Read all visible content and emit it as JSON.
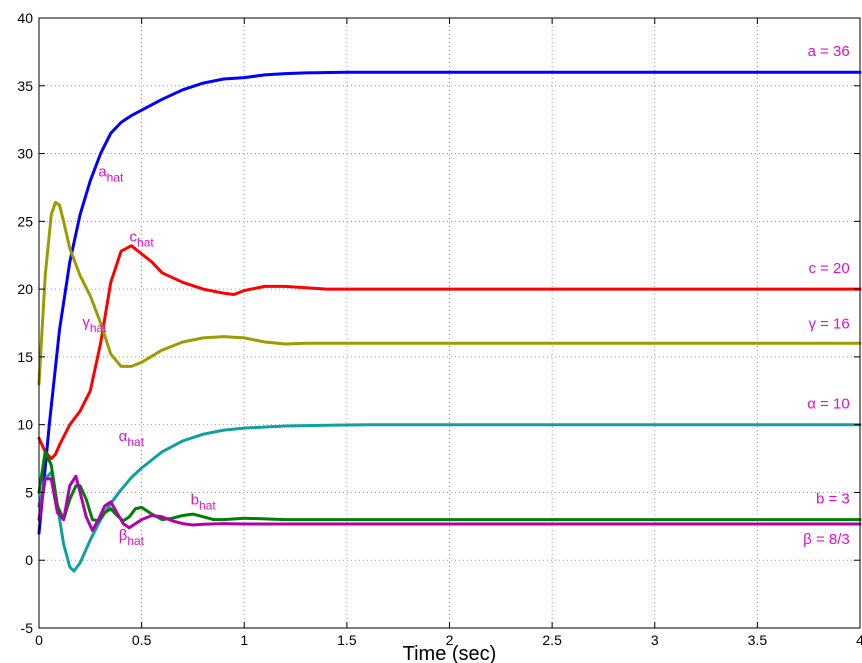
{
  "chart_data": {
    "type": "line",
    "title": "",
    "xlabel": "Time (sec)",
    "ylabel": "",
    "xlim": [
      0,
      4
    ],
    "ylim": [
      -5,
      40
    ],
    "xticks": [
      0,
      0.5,
      1,
      1.5,
      2,
      2.5,
      3,
      3.5,
      4
    ],
    "xtick_labels": [
      "0",
      "0.5",
      "1",
      "1.5",
      "2",
      "2.5",
      "3",
      "3.5",
      "4"
    ],
    "yticks": [
      -5,
      0,
      5,
      10,
      15,
      20,
      25,
      30,
      35,
      40
    ],
    "ytick_labels": [
      "-5",
      "0",
      "5",
      "10",
      "15",
      "20",
      "25",
      "30",
      "35",
      "40"
    ],
    "grid": true,
    "legend": "none",
    "annotation_color": "#e010d0",
    "series": [
      {
        "color": "#0000ff",
        "x": [
          0,
          0.05,
          0.1,
          0.15,
          0.2,
          0.25,
          0.3,
          0.35,
          0.4,
          0.45,
          0.5,
          0.6,
          0.7,
          0.8,
          0.9,
          1.0,
          1.1,
          1.2,
          1.3,
          1.5,
          2,
          2.5,
          3,
          3.5,
          4
        ],
        "y": [
          2,
          10,
          17,
          22,
          25.5,
          28,
          30,
          31.5,
          32.3,
          32.8,
          33.2,
          34,
          34.7,
          35.2,
          35.5,
          35.6,
          35.8,
          35.9,
          35.95,
          36,
          36,
          36,
          36,
          36,
          36
        ]
      },
      {
        "color": "#ff0000",
        "x": [
          0,
          0.03,
          0.06,
          0.08,
          0.1,
          0.15,
          0.2,
          0.25,
          0.3,
          0.35,
          0.4,
          0.45,
          0.5,
          0.55,
          0.6,
          0.7,
          0.8,
          0.9,
          0.95,
          1.0,
          1.1,
          1.2,
          1.3,
          1.4,
          1.6,
          2,
          2.5,
          3,
          3.5,
          4
        ],
        "y": [
          9,
          8,
          7.5,
          7.8,
          8.5,
          10,
          11,
          12.5,
          16,
          20.5,
          22.8,
          23.2,
          22.6,
          22,
          21.2,
          20.5,
          20,
          19.7,
          19.6,
          19.9,
          20.2,
          20.2,
          20.1,
          20,
          20,
          20,
          20,
          20,
          20,
          20
        ]
      },
      {
        "color": "#9c9c00",
        "x": [
          0,
          0.03,
          0.06,
          0.08,
          0.1,
          0.12,
          0.15,
          0.2,
          0.25,
          0.3,
          0.35,
          0.4,
          0.45,
          0.5,
          0.6,
          0.7,
          0.8,
          0.9,
          1.0,
          1.1,
          1.2,
          1.3,
          1.5,
          2,
          2.5,
          3,
          3.5,
          4
        ],
        "y": [
          13,
          21,
          25.5,
          26.4,
          26.2,
          25,
          23,
          21,
          19.5,
          17.5,
          15.2,
          14.3,
          14.3,
          14.6,
          15.5,
          16.1,
          16.4,
          16.5,
          16.4,
          16.1,
          15.95,
          16,
          16,
          16,
          16,
          16,
          16,
          16
        ]
      },
      {
        "color": "#11a0a0",
        "x": [
          0,
          0.03,
          0.06,
          0.09,
          0.12,
          0.15,
          0.17,
          0.2,
          0.25,
          0.3,
          0.35,
          0.4,
          0.45,
          0.5,
          0.6,
          0.7,
          0.8,
          0.9,
          1.0,
          1.2,
          1.4,
          1.6,
          2,
          2.5,
          3,
          3.5,
          4
        ],
        "y": [
          4,
          6,
          6.5,
          4,
          1.2,
          -0.5,
          -0.8,
          -0.2,
          1.5,
          3,
          4.2,
          5.2,
          6.1,
          6.8,
          8,
          8.8,
          9.3,
          9.6,
          9.75,
          9.9,
          9.95,
          10,
          10,
          10,
          10,
          10,
          10
        ]
      },
      {
        "color": "#008000",
        "x": [
          0,
          0.03,
          0.06,
          0.09,
          0.12,
          0.15,
          0.18,
          0.2,
          0.23,
          0.26,
          0.29,
          0.32,
          0.35,
          0.38,
          0.41,
          0.44,
          0.47,
          0.5,
          0.55,
          0.6,
          0.65,
          0.7,
          0.75,
          0.8,
          0.85,
          0.9,
          1.0,
          1.2,
          1.5,
          2,
          3,
          4
        ],
        "y": [
          5,
          8,
          7,
          4,
          3,
          4.5,
          5.5,
          5.5,
          4.5,
          3,
          2.9,
          3.5,
          3.8,
          3.3,
          2.9,
          3.2,
          3.8,
          3.9,
          3.4,
          3,
          3.1,
          3.3,
          3.4,
          3.2,
          3,
          3,
          3.1,
          3,
          3,
          3,
          3,
          3
        ]
      },
      {
        "color": "#b000b0",
        "x": [
          0,
          0.03,
          0.06,
          0.09,
          0.12,
          0.15,
          0.18,
          0.2,
          0.23,
          0.26,
          0.29,
          0.32,
          0.35,
          0.38,
          0.41,
          0.44,
          0.47,
          0.5,
          0.55,
          0.6,
          0.65,
          0.7,
          0.75,
          0.8,
          0.9,
          1.0,
          1.2,
          1.5,
          2,
          3,
          4
        ],
        "y": [
          3,
          6,
          6,
          3.5,
          3,
          5.5,
          6.2,
          5,
          3.2,
          2.2,
          3,
          4,
          4.3,
          3.5,
          2.7,
          2.4,
          2.7,
          3,
          3.3,
          3.2,
          2.9,
          2.7,
          2.6,
          2.65,
          2.7,
          2.67,
          2.67,
          2.67,
          2.67,
          2.67,
          2.67
        ]
      }
    ],
    "annotations": [
      {
        "base": "a",
        "sub": "hat",
        "x": 0.35,
        "y": 28.3
      },
      {
        "base": "c",
        "sub": "hat",
        "x": 0.5,
        "y": 23.5
      },
      {
        "base": "γ",
        "sub": "hat",
        "x": 0.27,
        "y": 17.2
      },
      {
        "base": "α",
        "sub": "hat",
        "x": 0.45,
        "y": 8.8
      },
      {
        "base": "b",
        "sub": "hat",
        "x": 0.8,
        "y": 4.1
      },
      {
        "base": "β",
        "sub": "hat",
        "x": 0.45,
        "y": 1.5
      },
      {
        "base": "a = 36",
        "sub": "",
        "x": 3.95,
        "y": 37.2
      },
      {
        "base": "c = 20",
        "sub": "",
        "x": 3.95,
        "y": 21.2
      },
      {
        "base": "γ = 16",
        "sub": "",
        "x": 3.95,
        "y": 17.1
      },
      {
        "base": "α = 10",
        "sub": "",
        "x": 3.95,
        "y": 11.2
      },
      {
        "base": "b = 3",
        "sub": "",
        "x": 3.95,
        "y": 4.2
      },
      {
        "base": "β = 8/3",
        "sub": "",
        "x": 3.95,
        "y": 1.2
      }
    ]
  }
}
